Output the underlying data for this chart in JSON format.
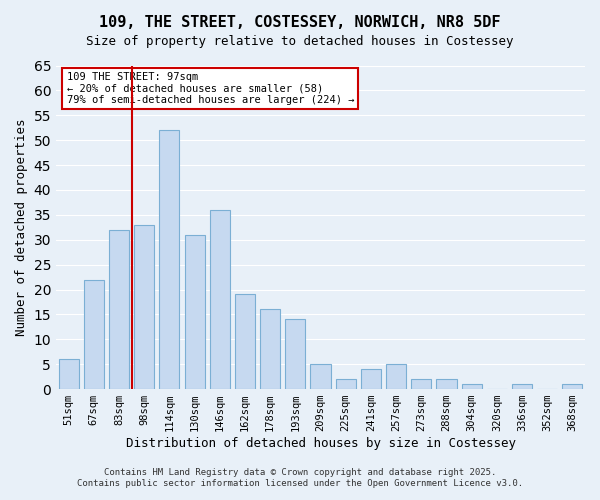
{
  "title": "109, THE STREET, COSTESSEY, NORWICH, NR8 5DF",
  "subtitle": "Size of property relative to detached houses in Costessey",
  "xlabel": "Distribution of detached houses by size in Costessey",
  "ylabel": "Number of detached properties",
  "bar_labels": [
    "51sqm",
    "67sqm",
    "83sqm",
    "98sqm",
    "114sqm",
    "130sqm",
    "146sqm",
    "162sqm",
    "178sqm",
    "193sqm",
    "209sqm",
    "225sqm",
    "241sqm",
    "257sqm",
    "273sqm",
    "288sqm",
    "304sqm",
    "320sqm",
    "336sqm",
    "352sqm",
    "368sqm"
  ],
  "bar_values": [
    6,
    22,
    32,
    33,
    52,
    31,
    36,
    19,
    16,
    14,
    5,
    2,
    4,
    5,
    2,
    2,
    1,
    0,
    1,
    0,
    1
  ],
  "bar_color": "#c6d9f0",
  "bar_edge_color": "#7bafd4",
  "vline_x": 2.5,
  "vline_color": "#cc0000",
  "ylim": [
    0,
    65
  ],
  "yticks": [
    0,
    5,
    10,
    15,
    20,
    25,
    30,
    35,
    40,
    45,
    50,
    55,
    60,
    65
  ],
  "annotation_title": "109 THE STREET: 97sqm",
  "annotation_line1": "← 20% of detached houses are smaller (58)",
  "annotation_line2": "79% of semi-detached houses are larger (224) →",
  "annotation_box_color": "#ffffff",
  "annotation_box_edge": "#cc0000",
  "grid_color": "#ffffff",
  "bg_color": "#e8f0f8",
  "footer1": "Contains HM Land Registry data © Crown copyright and database right 2025.",
  "footer2": "Contains public sector information licensed under the Open Government Licence v3.0."
}
